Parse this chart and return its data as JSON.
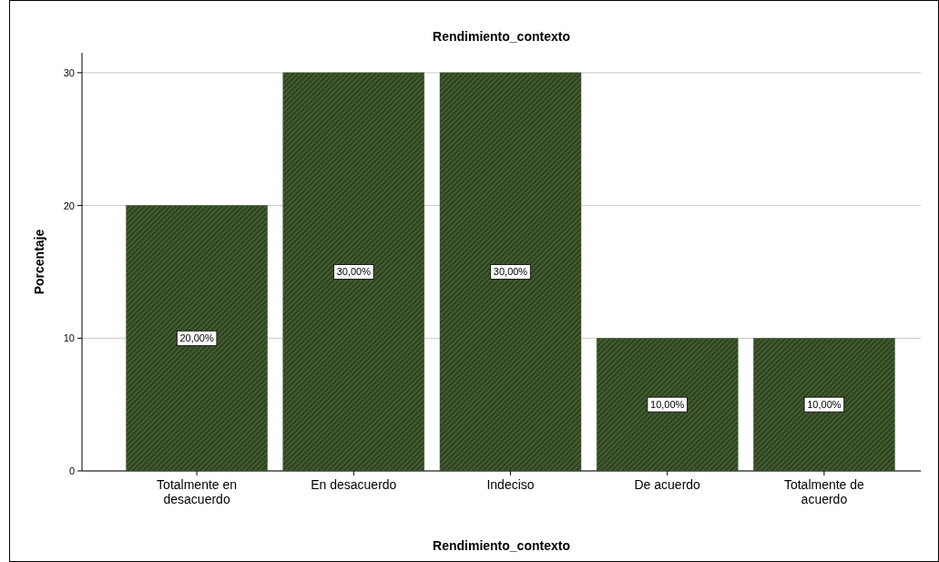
{
  "chart_data": {
    "type": "bar",
    "title": "Rendimiento_contexto",
    "xlabel": "Rendimiento_contexto",
    "ylabel": "Porcentaje",
    "categories": [
      "Totalmente en desacuerdo",
      "En desacuerdo",
      "Indeciso",
      "De acuerdo",
      "Totalmente de acuerdo"
    ],
    "values": [
      20,
      30,
      30,
      10,
      10
    ],
    "value_labels": [
      "20,00%",
      "30,00%",
      "30,00%",
      "10,00%",
      "10,00%"
    ],
    "color": "#3f5a2c",
    "ylim": [
      0,
      31.5
    ],
    "yticks": [
      0,
      10,
      20,
      30
    ],
    "grid": "y"
  }
}
